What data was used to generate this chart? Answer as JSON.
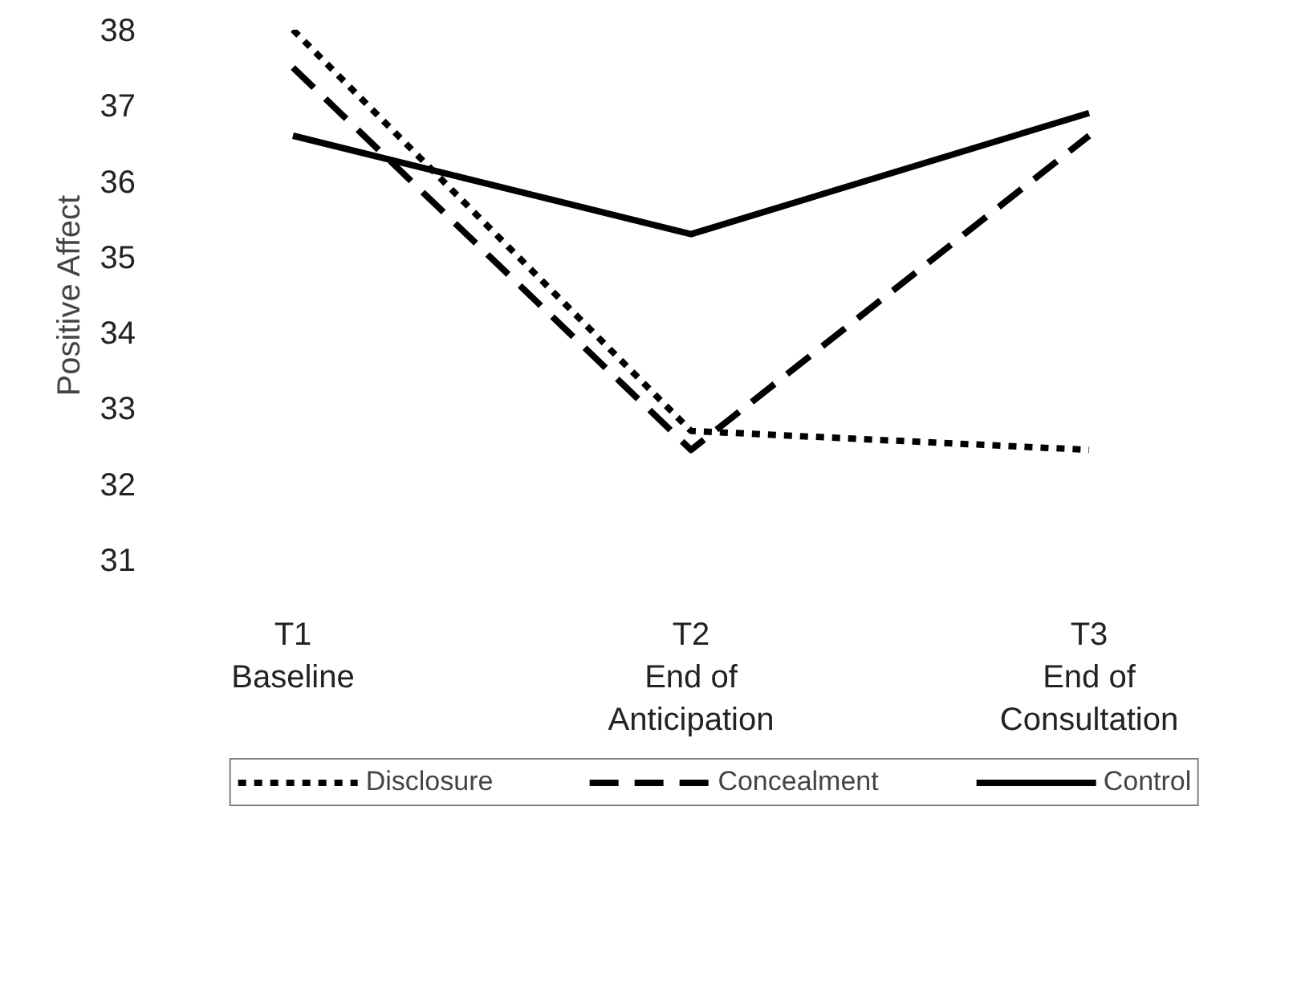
{
  "chart_data": {
    "type": "line",
    "ylabel": "Positive Affect",
    "categories": [
      "T1\nBaseline",
      "T2\nEnd of\nAnticipation",
      "T3\nEnd of\nConsultation"
    ],
    "series": [
      {
        "name": "Disclosure",
        "color": "#000000",
        "line_style": "dotted",
        "values": [
          38.0,
          32.7,
          32.45
        ]
      },
      {
        "name": "Concealment",
        "color": "#000000",
        "line_style": "dashed",
        "values": [
          37.5,
          32.45,
          36.6
        ]
      },
      {
        "name": "Control",
        "color": "#000000",
        "line_style": "solid",
        "values": [
          36.6,
          35.3,
          36.9
        ]
      }
    ],
    "ylim": [
      31,
      38
    ],
    "yticks": [
      31,
      32,
      33,
      34,
      35,
      36,
      37,
      38
    ],
    "grid": false,
    "legend": "bottom",
    "marker": "none"
  }
}
